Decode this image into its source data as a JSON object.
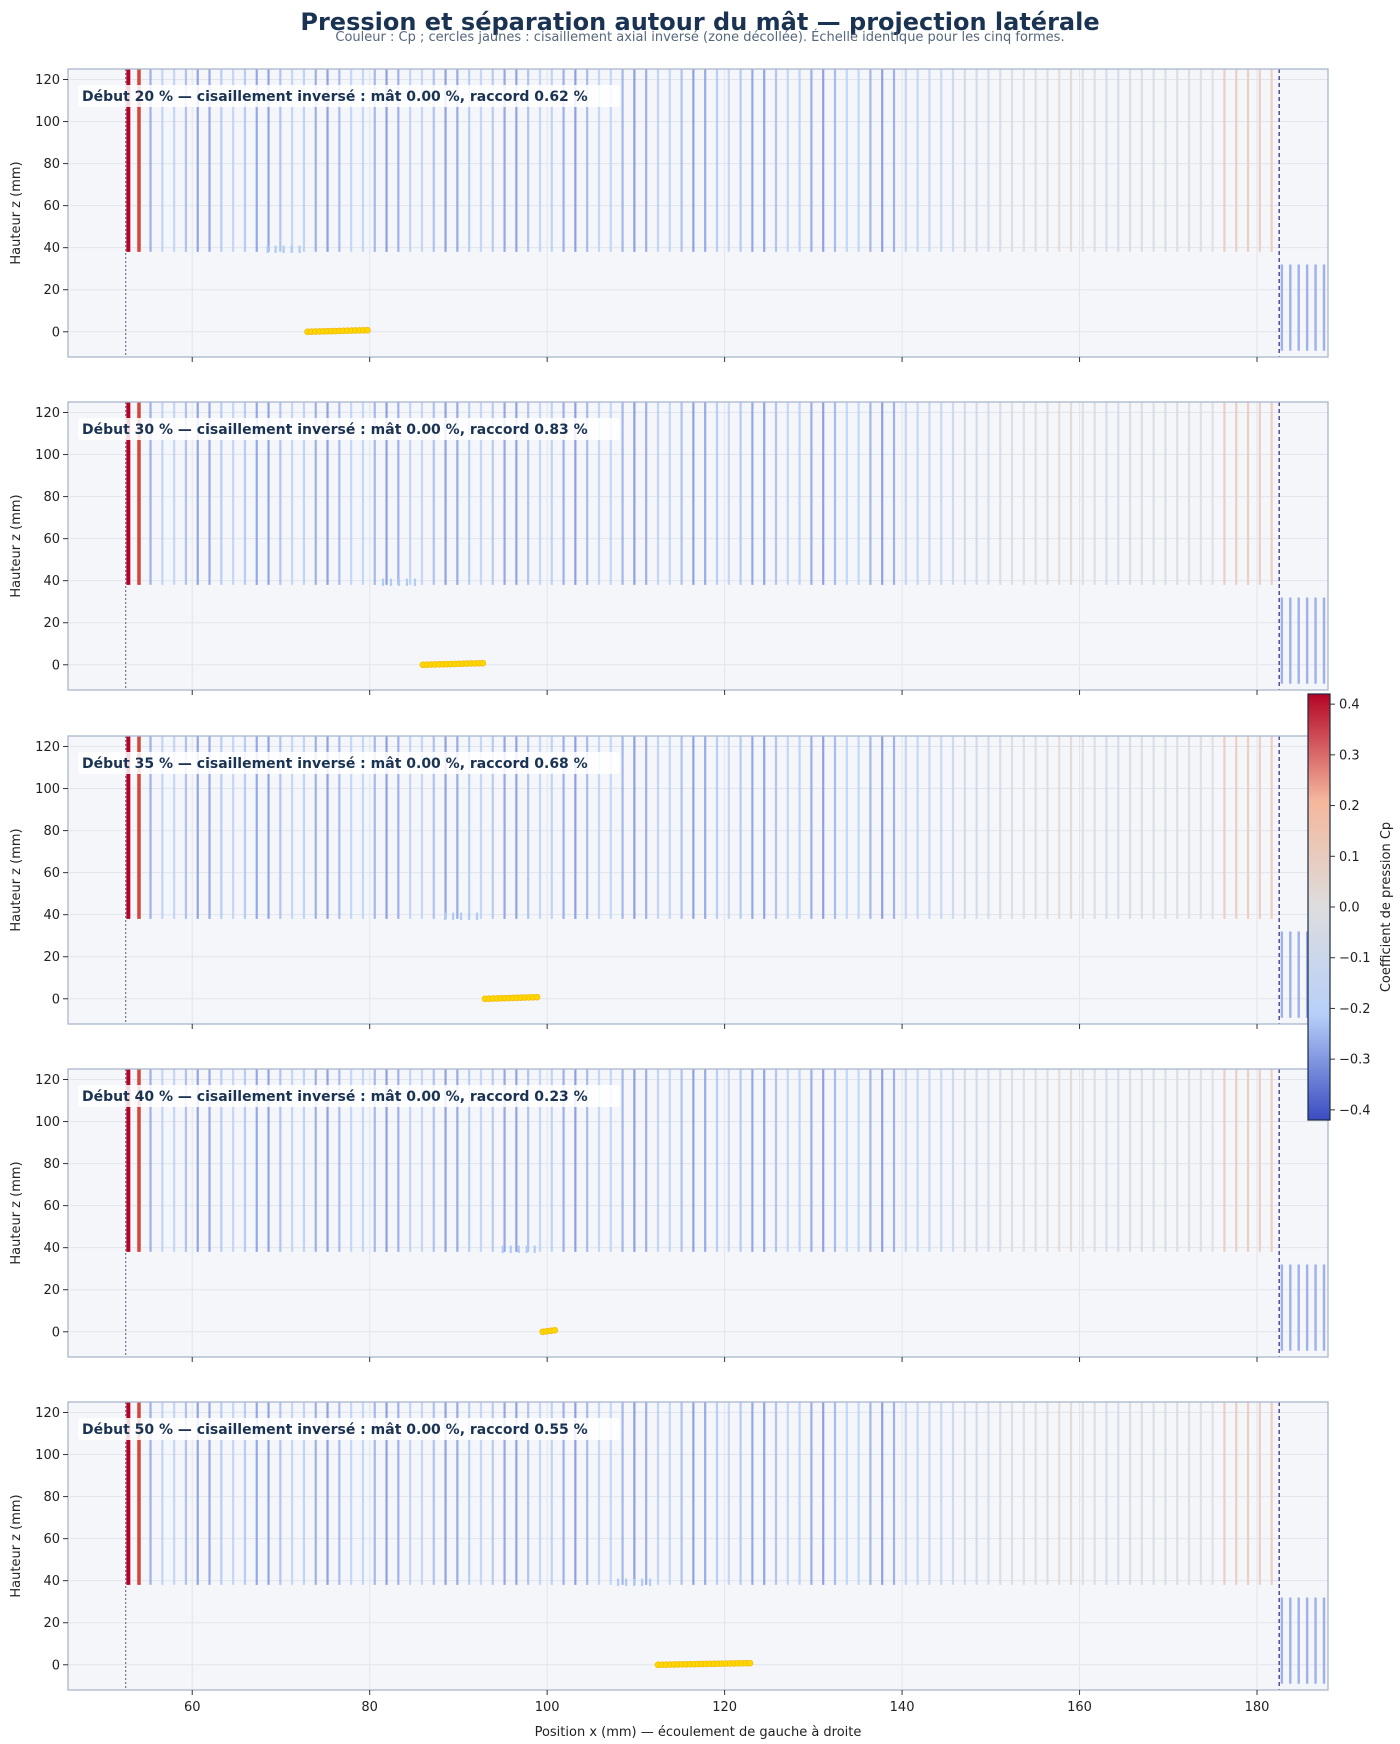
{
  "title": "Pression et séparation autour du mât — projection latérale",
  "subtitle": "Couleur : Cp ; cercles jaunes : cisaillement axial inversé (zone décollée). Échelle identique pour les cinq formes.",
  "xlabel": "Position x (mm) — écoulement de gauche à droite",
  "ylabel": "Hauteur z (mm)",
  "colorbar": {
    "label": "Coefficient de pression Cp",
    "range": [
      -0.42,
      0.42
    ],
    "ticks": [
      "0.4",
      "0.3",
      "0.2",
      "0.1",
      "0.0",
      "−0.1",
      "−0.2",
      "−0.3",
      "−0.4"
    ],
    "colormap": "coolwarm",
    "colors": [
      "#3b4cc0",
      "#b8d0f9",
      "#dddddd",
      "#f5b79c",
      "#b40426"
    ]
  },
  "chart_data": {
    "type": "scatter",
    "xlim": [
      46,
      188
    ],
    "ylim": [
      -12,
      125
    ],
    "x_ticks": [
      "60",
      "80",
      "100",
      "120",
      "140",
      "160",
      "180"
    ],
    "y_ticks": [
      "0",
      "20",
      "40",
      "60",
      "80",
      "100",
      "120"
    ],
    "grid": true,
    "marker_legend": "cercles jaunes : cisaillement axial inversé (zone décollée)",
    "reference_lines": {
      "inlet_x": 52.5,
      "outlet_x": 182.5
    },
    "panels": [
      {
        "start_pct": 20,
        "annotation": "Début 20 % — cisaillement inversé : mât 0.00 %, raccord 0.62 %",
        "mast_cp": 0.0,
        "fillet_cp": 0.62,
        "fillet_start_x": 73,
        "yellow_x": [
          73,
          80
        ]
      },
      {
        "start_pct": 30,
        "annotation": "Début 30 % — cisaillement inversé : mât 0.00 %, raccord 0.83 %",
        "mast_cp": 0.0,
        "fillet_cp": 0.83,
        "fillet_start_x": 86,
        "yellow_x": [
          86,
          93
        ]
      },
      {
        "start_pct": 35,
        "annotation": "Début 35 % — cisaillement inversé : mât 0.00 %, raccord 0.68 %",
        "mast_cp": 0.0,
        "fillet_cp": 0.68,
        "fillet_start_x": 93,
        "yellow_x": [
          93,
          99
        ]
      },
      {
        "start_pct": 40,
        "annotation": "Début 40 % — cisaillement inversé : mât 0.00 %, raccord 0.23 %",
        "mast_cp": 0.0,
        "fillet_cp": 0.23,
        "fillet_start_x": 99.5,
        "yellow_x": [
          99.5,
          101
        ]
      },
      {
        "start_pct": 50,
        "annotation": "Début 50 % — cisaillement inversé : mât 0.00 %, raccord 0.55 %",
        "mast_cp": 0.0,
        "fillet_cp": 0.55,
        "fillet_start_x": 112.5,
        "yellow_x": [
          112.5,
          123
        ]
      }
    ]
  }
}
